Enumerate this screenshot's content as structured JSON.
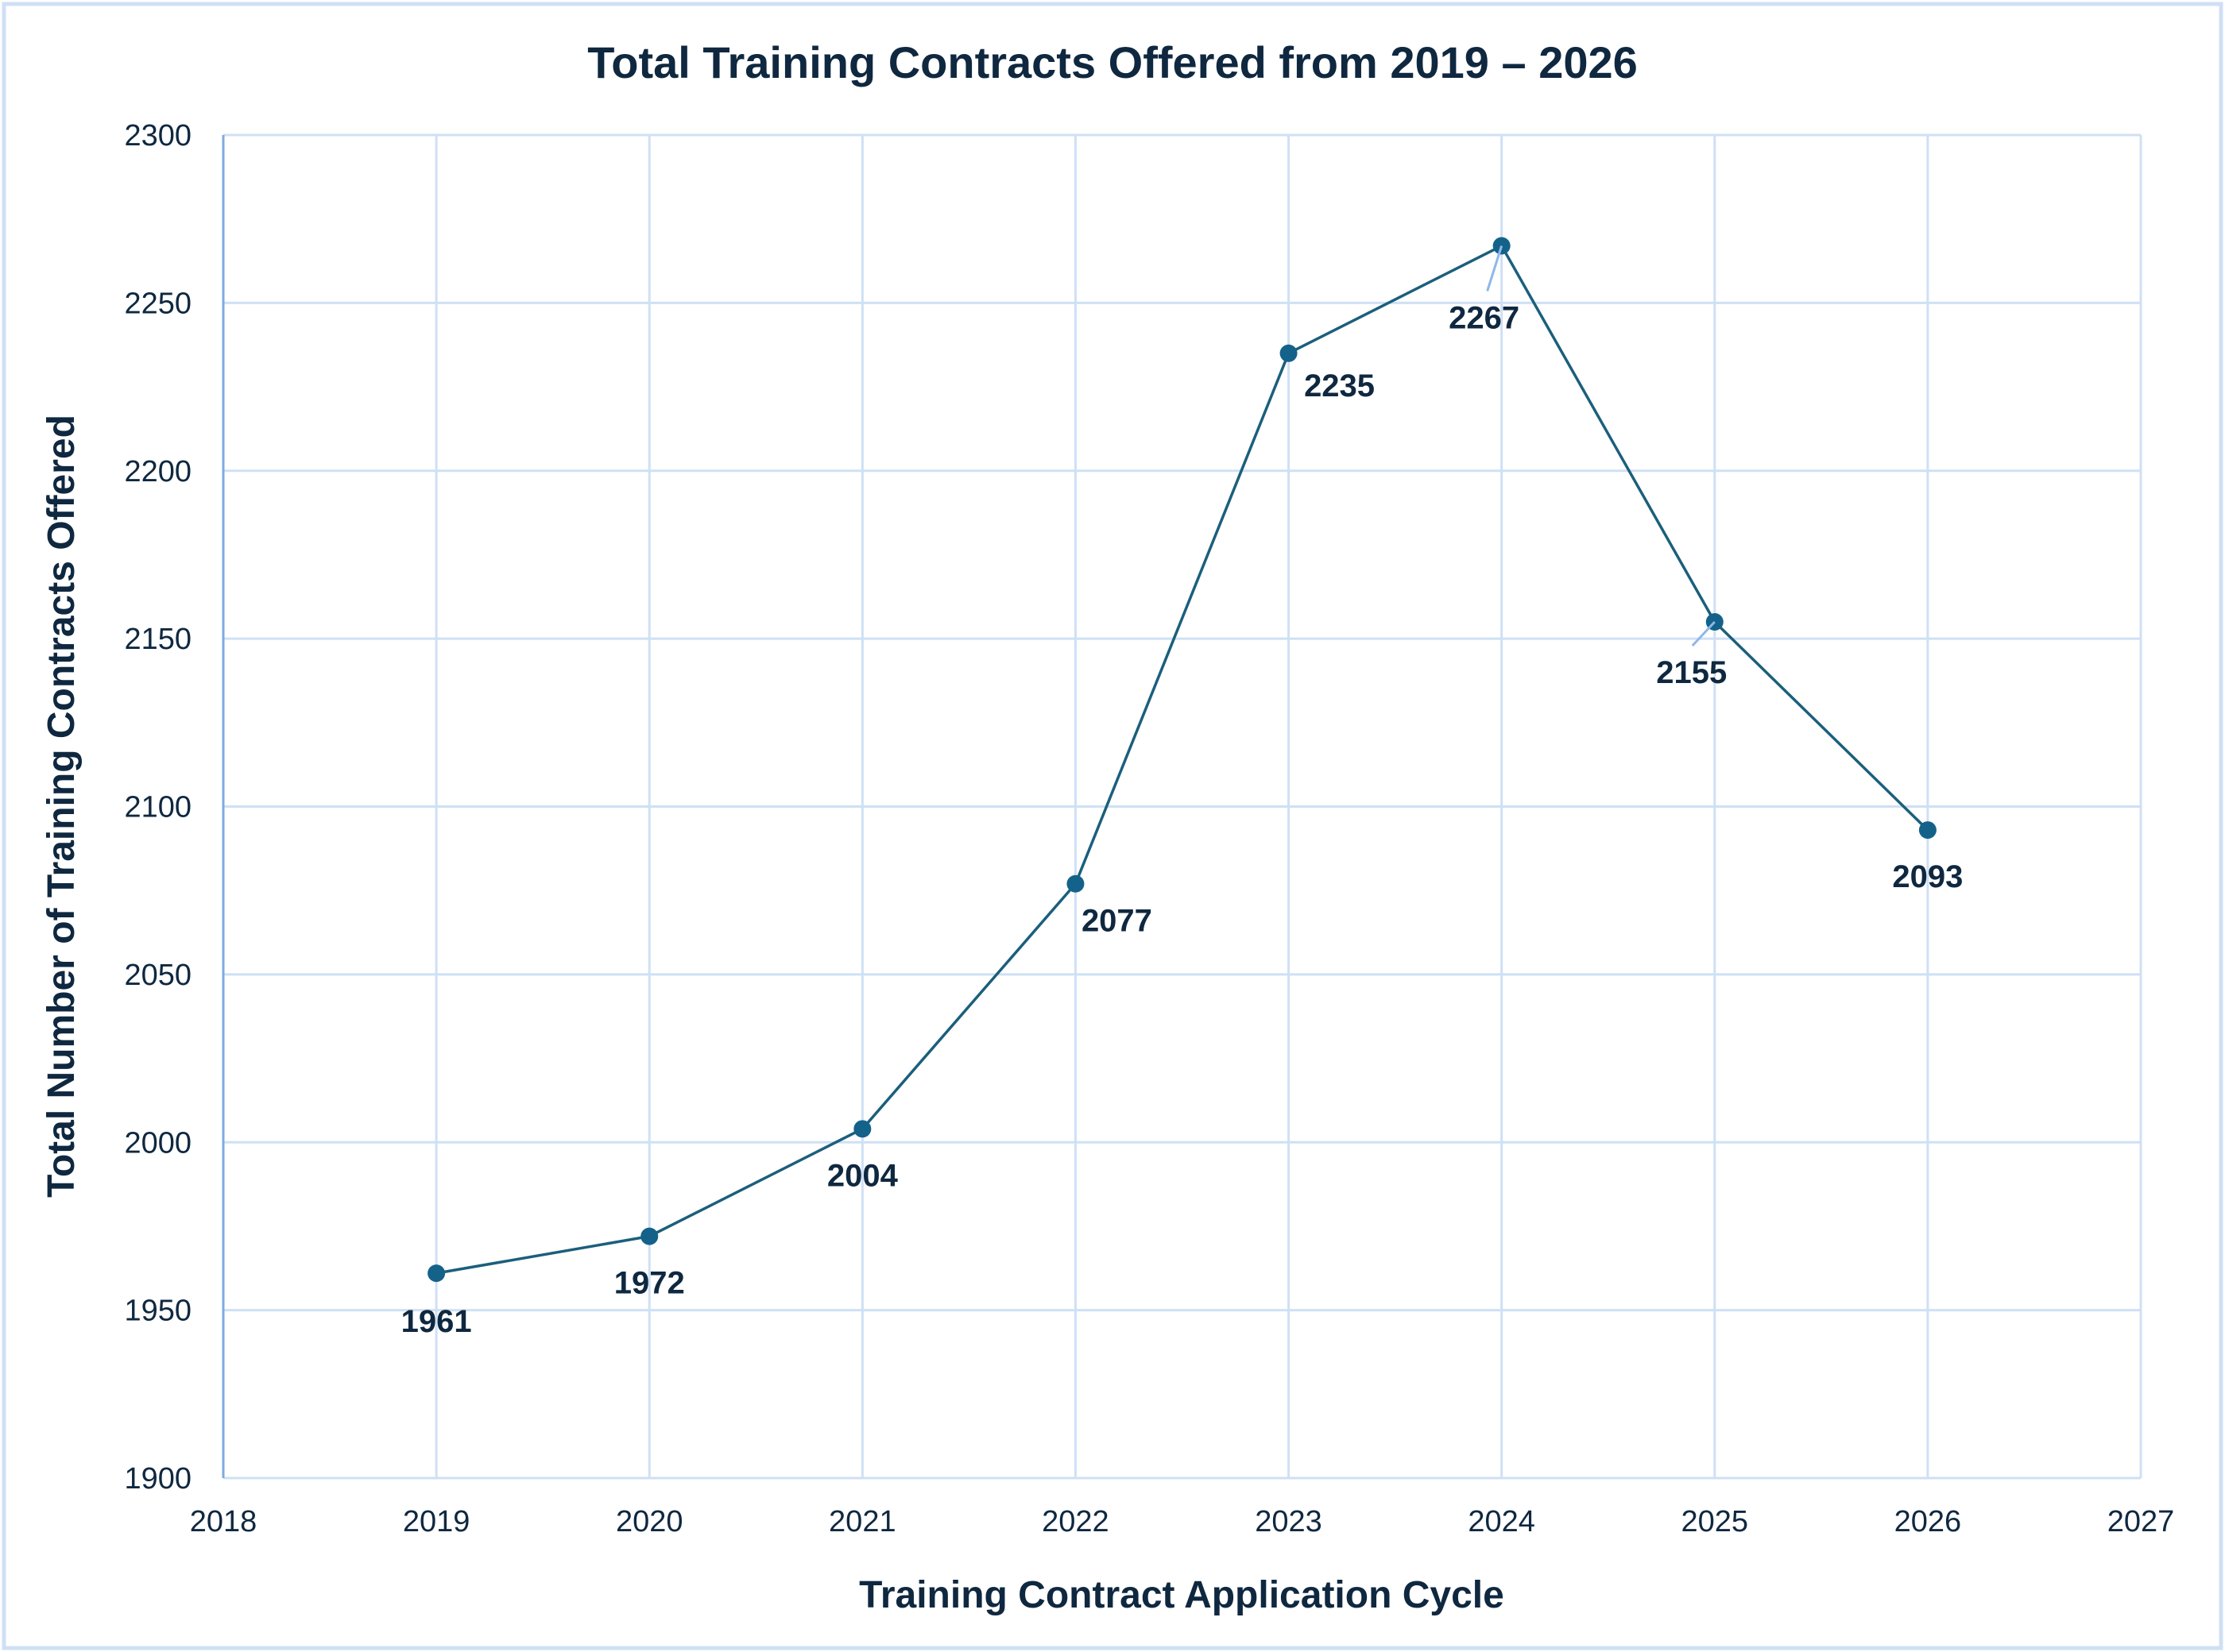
{
  "chart_data": {
    "type": "line",
    "title": "Total Training Contracts Offered from 2019 – 2026",
    "xlabel": "Training Contract Application Cycle",
    "ylabel": "Total Number of Training Contracts Offered",
    "x": [
      2019,
      2020,
      2021,
      2022,
      2023,
      2024,
      2025,
      2026
    ],
    "series": [
      {
        "name": "Total Training Contracts Offered",
        "values": [
          1961,
          1972,
          2004,
          2077,
          2235,
          2267,
          2155,
          2093
        ]
      }
    ],
    "data_labels": [
      "1961",
      "1972",
      "2004",
      "2077",
      "2235",
      "2267",
      "2155",
      "2093"
    ],
    "xlim": [
      2018,
      2027
    ],
    "ylim": [
      1900,
      2300
    ],
    "x_ticks": [
      "2018",
      "2019",
      "2020",
      "2021",
      "2022",
      "2023",
      "2024",
      "2025",
      "2026",
      "2027"
    ],
    "y_ticks": [
      "1900",
      "1950",
      "2000",
      "2050",
      "2100",
      "2150",
      "2200",
      "2250",
      "2300"
    ],
    "grid": true,
    "legend": "none",
    "colors": {
      "line": "#1b5f7c",
      "marker": "#14628a",
      "text": "#0f2840",
      "grid": "#cfe0f5",
      "axis": "#7fa9de",
      "leader": "#8fb8e8",
      "frame": "#cfe0f5"
    }
  }
}
